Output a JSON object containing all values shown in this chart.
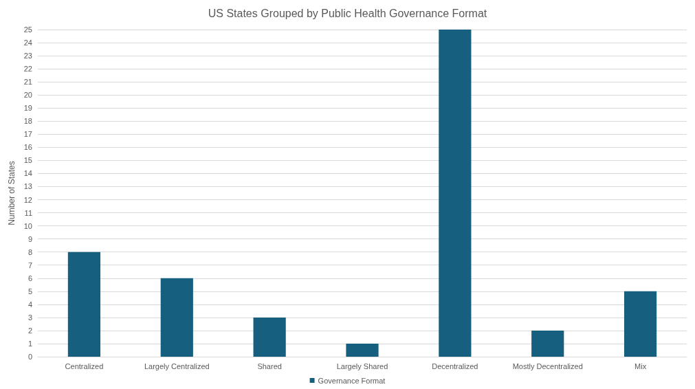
{
  "chart_data": {
    "type": "bar",
    "title": "US States Grouped by Public Health Governance Format",
    "ylabel": "Number of States",
    "categories": [
      "Centralized",
      "Largely Centralized",
      "Shared",
      "Largely Shared",
      "Decentralized",
      "Mostly Decentralized",
      "Mix"
    ],
    "series": [
      {
        "name": "Governance Format",
        "color": "#175f7e",
        "values": [
          8,
          6,
          3,
          1,
          25,
          2,
          5
        ]
      }
    ],
    "ylim": [
      0,
      25
    ],
    "yticks": [
      0,
      1,
      2,
      3,
      4,
      5,
      6,
      7,
      8,
      9,
      10,
      11,
      12,
      13,
      14,
      15,
      16,
      17,
      18,
      19,
      20,
      21,
      22,
      23,
      24,
      25
    ],
    "grid": "y",
    "legend": "bottom"
  }
}
